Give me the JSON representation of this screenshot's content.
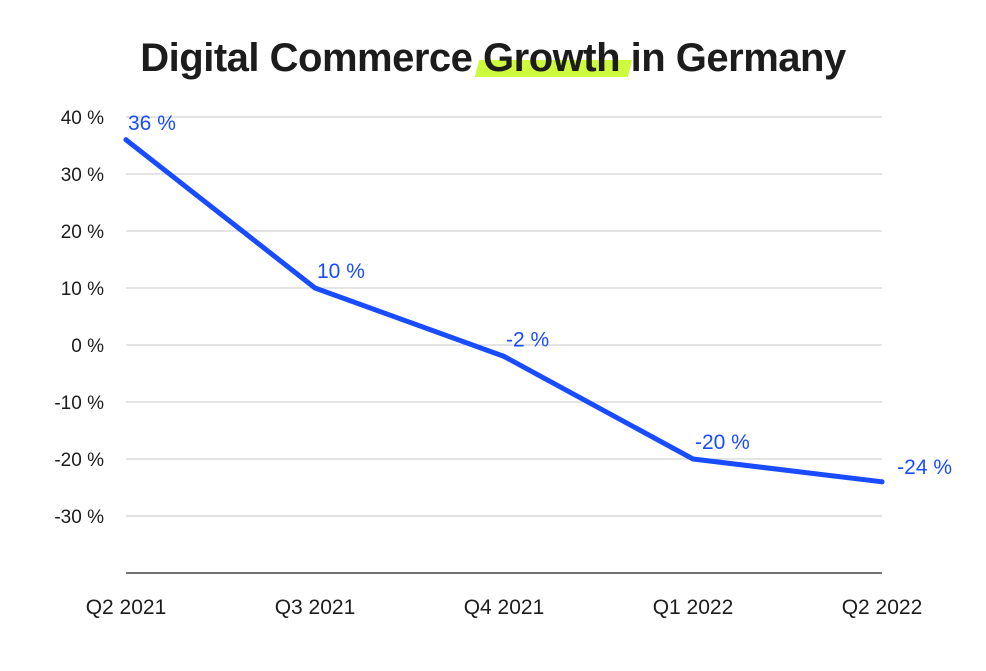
{
  "chart_data": {
    "type": "line",
    "title_parts": [
      "Digital Commerce ",
      "Growth",
      " in Germany"
    ],
    "title": "Digital Commerce Growth in Germany",
    "highlighted_word": "Growth",
    "categories": [
      "Q2 2021",
      "Q3 2021",
      "Q4 2021",
      "Q1 2022",
      "Q2 2022"
    ],
    "series": [
      {
        "name": "Growth",
        "values": [
          36,
          10,
          -2,
          -20,
          -24
        ],
        "labels": [
          "36 %",
          "10 %",
          "-2 %",
          "-20 %",
          "-24 %"
        ]
      }
    ],
    "yticks": [
      40,
      30,
      20,
      10,
      0,
      -10,
      -20,
      -30
    ],
    "ytick_labels": [
      "40 %",
      "30 %",
      "20 %",
      "10 %",
      "0 %",
      "-10 %",
      "-20 %",
      "-30 %"
    ],
    "ylim": [
      -40,
      40
    ],
    "xlabel": "",
    "ylabel": "",
    "grid": true,
    "legend": "none"
  },
  "colors": {
    "line": "#1a4cff",
    "grid": "#c8c8c8",
    "axis": "#1c1c1c",
    "highlight": "#cdfa3c",
    "text": "#1c1c1c"
  }
}
